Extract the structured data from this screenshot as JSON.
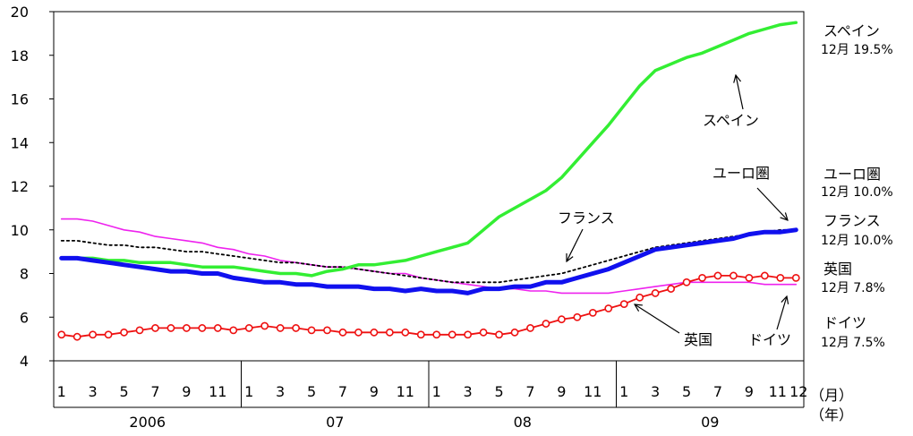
{
  "chart_data": {
    "type": "line",
    "ylim": [
      4,
      20
    ],
    "yticks": [
      4,
      6,
      8,
      10,
      12,
      14,
      16,
      18,
      20
    ],
    "month_ticks": [
      "1",
      "3",
      "5",
      "7",
      "9",
      "11",
      "1",
      "3",
      "5",
      "7",
      "9",
      "11",
      "1",
      "3",
      "5",
      "7",
      "9",
      "11",
      "1",
      "3",
      "5",
      "7",
      "9",
      "11",
      "12"
    ],
    "year_labels": [
      "2006",
      "07",
      "08",
      "09"
    ],
    "unit_month": "（月）",
    "unit_year": "（年）",
    "grid": false,
    "x": [
      1,
      2,
      3,
      4,
      5,
      6,
      7,
      8,
      9,
      10,
      11,
      12,
      13,
      14,
      15,
      16,
      17,
      18,
      19,
      20,
      21,
      22,
      23,
      24,
      25,
      26,
      27,
      28,
      29,
      30,
      31,
      32,
      33,
      34,
      35,
      36,
      37,
      38,
      39,
      40,
      41,
      42,
      43,
      44,
      45,
      46,
      47,
      48
    ],
    "series": [
      {
        "name": "スペイン",
        "color": "#33ee33",
        "style": "thick",
        "values": [
          8.7,
          8.7,
          8.7,
          8.6,
          8.6,
          8.5,
          8.5,
          8.5,
          8.4,
          8.3,
          8.3,
          8.3,
          8.2,
          8.1,
          8.0,
          8.0,
          7.9,
          8.1,
          8.2,
          8.4,
          8.4,
          8.5,
          8.6,
          8.8,
          9.0,
          9.2,
          9.4,
          10.0,
          10.6,
          11.0,
          11.4,
          11.8,
          12.4,
          13.2,
          14.0,
          14.8,
          15.7,
          16.6,
          17.3,
          17.6,
          17.9,
          18.1,
          18.4,
          18.7,
          19.0,
          19.2,
          19.4,
          19.5
        ]
      },
      {
        "name": "ユーロ圏",
        "color": "#1010ee",
        "style": "bold",
        "values": [
          8.7,
          8.7,
          8.6,
          8.5,
          8.4,
          8.3,
          8.2,
          8.1,
          8.1,
          8.0,
          8.0,
          7.8,
          7.7,
          7.6,
          7.6,
          7.5,
          7.5,
          7.4,
          7.4,
          7.4,
          7.3,
          7.3,
          7.2,
          7.3,
          7.2,
          7.2,
          7.1,
          7.3,
          7.3,
          7.4,
          7.4,
          7.6,
          7.6,
          7.8,
          8.0,
          8.2,
          8.5,
          8.8,
          9.1,
          9.2,
          9.3,
          9.4,
          9.5,
          9.6,
          9.8,
          9.9,
          9.9,
          10.0
        ]
      },
      {
        "name": "フランス",
        "color": "#000000",
        "style": "dotted",
        "values": [
          9.5,
          9.5,
          9.4,
          9.3,
          9.3,
          9.2,
          9.2,
          9.1,
          9.0,
          9.0,
          8.9,
          8.8,
          8.7,
          8.6,
          8.5,
          8.5,
          8.4,
          8.3,
          8.3,
          8.2,
          8.1,
          8.0,
          7.9,
          7.8,
          7.7,
          7.6,
          7.6,
          7.6,
          7.6,
          7.7,
          7.8,
          7.9,
          8.0,
          8.2,
          8.4,
          8.6,
          8.8,
          9.0,
          9.2,
          9.3,
          9.4,
          9.5,
          9.6,
          9.7,
          9.8,
          9.9,
          10.0,
          10.0
        ]
      },
      {
        "name": "ドイツ",
        "color": "#ee22ee",
        "style": "thin",
        "values": [
          10.5,
          10.5,
          10.4,
          10.2,
          10.0,
          9.9,
          9.7,
          9.6,
          9.5,
          9.4,
          9.2,
          9.1,
          8.9,
          8.8,
          8.6,
          8.5,
          8.4,
          8.3,
          8.3,
          8.2,
          8.1,
          8.0,
          8.0,
          7.8,
          7.7,
          7.6,
          7.5,
          7.4,
          7.3,
          7.3,
          7.2,
          7.2,
          7.1,
          7.1,
          7.1,
          7.1,
          7.2,
          7.3,
          7.4,
          7.5,
          7.6,
          7.6,
          7.6,
          7.6,
          7.6,
          7.5,
          7.5,
          7.5
        ]
      },
      {
        "name": "英国",
        "color": "#ee1111",
        "style": "markers",
        "values": [
          5.2,
          5.1,
          5.2,
          5.2,
          5.3,
          5.4,
          5.5,
          5.5,
          5.5,
          5.5,
          5.5,
          5.4,
          5.5,
          5.6,
          5.5,
          5.5,
          5.4,
          5.4,
          5.3,
          5.3,
          5.3,
          5.3,
          5.3,
          5.2,
          5.2,
          5.2,
          5.2,
          5.3,
          5.2,
          5.3,
          5.5,
          5.7,
          5.9,
          6.0,
          6.2,
          6.4,
          6.6,
          6.9,
          7.1,
          7.3,
          7.6,
          7.8,
          7.9,
          7.9,
          7.8,
          7.9,
          7.8,
          7.8
        ]
      }
    ],
    "inline_labels": [
      {
        "text": "スペイン",
        "series": "スペイン"
      },
      {
        "text": "ユーロ圏",
        "series": "ユーロ圏"
      },
      {
        "text": "フランス",
        "series": "フランス"
      },
      {
        "text": "英国",
        "series": "英国"
      },
      {
        "text": "ドイツ",
        "series": "ドイツ"
      }
    ],
    "right_labels": [
      {
        "name": "スペイン",
        "value": "12月 19.5%"
      },
      {
        "name": "ユーロ圏",
        "value": "12月 10.0%"
      },
      {
        "name": "フランス",
        "value": "12月 10.0%"
      },
      {
        "name": "英国",
        "value": "12月 7.8%"
      },
      {
        "name": "ドイツ",
        "value": "12月 7.5%"
      }
    ]
  }
}
